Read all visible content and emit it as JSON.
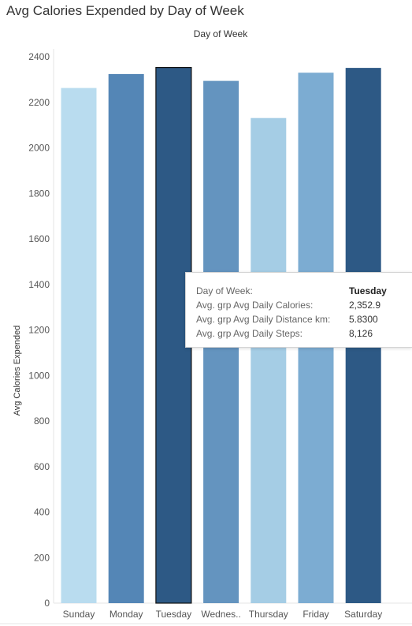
{
  "title": "Avg Calories Expended by Day of Week",
  "column_header": "Day of Week",
  "tooltip": {
    "rows": [
      {
        "key": "Day of Week:",
        "value": "Tuesday"
      },
      {
        "key": "Avg. grp Avg Daily Calories:",
        "value": "2,352.9"
      },
      {
        "key": "Avg. grp Avg Daily Distance km:",
        "value": "5.8300"
      },
      {
        "key": "Avg. grp Avg Daily Steps:",
        "value": "8,126"
      }
    ]
  },
  "chart_data": {
    "type": "bar",
    "title": "Avg Calories Expended by Day of Week",
    "xlabel": "Day of Week",
    "ylabel": "Avg Calories Expended",
    "categories": [
      "Sunday",
      "Monday",
      "Tuesday",
      "Wednes..",
      "Thursday",
      "Friday",
      "Saturday"
    ],
    "values": [
      2263,
      2324,
      2352.9,
      2294,
      2131,
      2330,
      2351
    ],
    "colors": [
      "#b9dcef",
      "#5486b6",
      "#2d5985",
      "#6494bf",
      "#a5cde5",
      "#7cacd2",
      "#2d5985"
    ],
    "highlighted": "Tuesday",
    "ylim": [
      0,
      2450
    ],
    "yticks": [
      0,
      200,
      400,
      600,
      800,
      1000,
      1200,
      1400,
      1600,
      1800,
      2000,
      2200,
      2400
    ],
    "grid": false
  }
}
